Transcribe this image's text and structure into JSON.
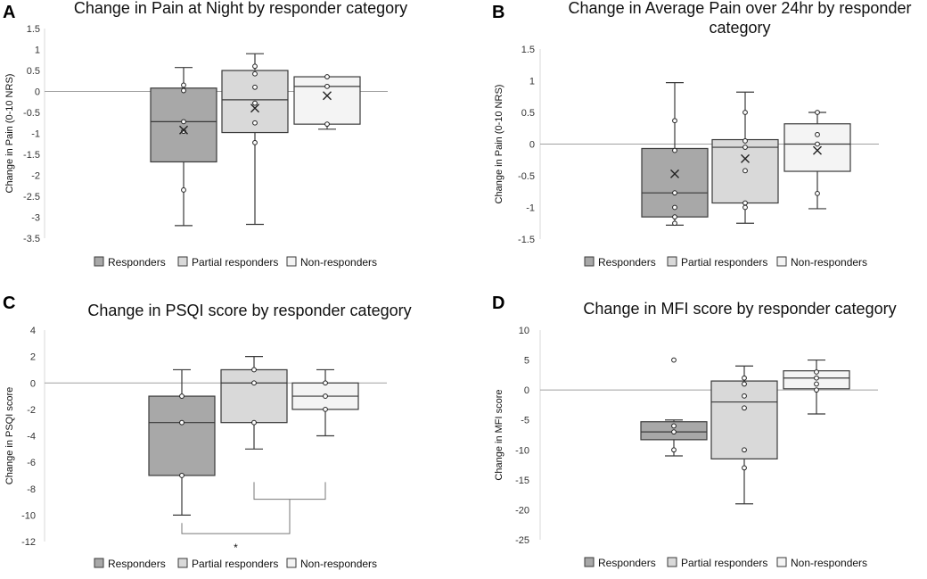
{
  "legend": [
    "Responders",
    "Partial responders",
    "Non-responders"
  ],
  "colors": {
    "responders": "#a8a8a8",
    "partial": "#d9d9d9",
    "non": "#f4f4f4",
    "stroke": "#3a3a3a",
    "zero_line": "#a0a0a0"
  },
  "chart_data": [
    {
      "panel": "A",
      "type": "box",
      "title_lines": [
        "Change in Pain at Night by responder category"
      ],
      "ylabel": "Change in Pain (0-10 NRS)",
      "ylim": [
        -3.5,
        1.5
      ],
      "yticks": [
        1.5,
        1,
        0.5,
        0,
        -0.5,
        -1,
        -1.5,
        -2,
        -2.5,
        -3,
        -3.5
      ],
      "ytick_labels": [
        "1.5",
        "1",
        "0.5",
        "0",
        "-0.5",
        "-1",
        "-1.5",
        "-2",
        "-2.5",
        "-3",
        "-3.5"
      ],
      "series": [
        {
          "name": "Responders",
          "min": -3.2,
          "q1": -1.68,
          "median": -0.72,
          "q3": 0.08,
          "max": 0.57,
          "mean": -0.92,
          "points": [
            0.15,
            0.02,
            -0.72,
            -0.95,
            -2.35
          ]
        },
        {
          "name": "Partial responders",
          "min": -3.17,
          "q1": -0.98,
          "median": -0.2,
          "q3": 0.5,
          "max": 0.9,
          "mean": -0.4,
          "points": [
            0.6,
            0.42,
            0.1,
            -0.28,
            -0.75,
            -1.22
          ]
        },
        {
          "name": "Non-responders",
          "min": -0.9,
          "q1": -0.78,
          "median": 0.12,
          "q3": 0.35,
          "max": 0.35,
          "mean": -0.1,
          "points": [
            0.35,
            0.12,
            -0.78
          ]
        }
      ]
    },
    {
      "panel": "B",
      "type": "box",
      "title_lines": [
        "Change in Average Pain over 24hr by responder",
        "category"
      ],
      "ylabel": "Change in Pain (0-10 NRS)",
      "ylim": [
        -1.5,
        1.5
      ],
      "yticks": [
        1.5,
        1,
        0.5,
        0,
        -0.5,
        -1,
        -1.5
      ],
      "ytick_labels": [
        "1.5",
        "1",
        "0.5",
        "0",
        "-0.5",
        "-1",
        "-1.5"
      ],
      "series": [
        {
          "name": "Responders",
          "min": -1.28,
          "q1": -1.15,
          "median": -0.77,
          "q3": -0.07,
          "max": 0.97,
          "mean": -0.47,
          "points": [
            0.37,
            -0.1,
            -0.77,
            -1.0,
            -1.15,
            -1.25
          ]
        },
        {
          "name": "Partial responders",
          "min": -1.25,
          "q1": -0.93,
          "median": -0.05,
          "q3": 0.07,
          "max": 0.82,
          "mean": -0.23,
          "points": [
            0.5,
            0.05,
            -0.05,
            -0.42,
            -0.93,
            -1.0
          ]
        },
        {
          "name": "Non-responders",
          "min": -1.02,
          "q1": -0.43,
          "median": 0.0,
          "q3": 0.32,
          "max": 0.5,
          "mean": -0.1,
          "points": [
            0.5,
            0.15,
            0.0,
            -0.78
          ]
        }
      ]
    },
    {
      "panel": "C",
      "type": "box",
      "title_lines": [
        "Change in PSQI score by responder category"
      ],
      "ylabel": "Change in PSQI score",
      "ylim": [
        -12,
        4
      ],
      "yticks": [
        4,
        2,
        0,
        -2,
        -4,
        -6,
        -8,
        -10,
        -12
      ],
      "ytick_labels": [
        "4",
        "2",
        "0",
        "-2",
        "-4",
        "-6",
        "-8",
        "-10",
        "-12"
      ],
      "series": [
        {
          "name": "Responders",
          "min": -10,
          "q1": -7,
          "median": -3,
          "q3": -1,
          "max": 1,
          "mean": null,
          "points": [
            -1,
            -3,
            -7
          ]
        },
        {
          "name": "Partial responders",
          "min": -5,
          "q1": -3,
          "median": 0,
          "q3": 1,
          "max": 2,
          "mean": null,
          "points": [
            1,
            0,
            -3
          ]
        },
        {
          "name": "Non-responders",
          "min": -4,
          "q1": -2,
          "median": -1,
          "q3": 0,
          "max": 1,
          "mean": null,
          "points": [
            0,
            -1,
            -2
          ]
        }
      ],
      "significance": "*"
    },
    {
      "panel": "D",
      "type": "box",
      "title_lines": [
        "Change in MFI score by responder category"
      ],
      "ylabel": "Change in MFI score",
      "ylim": [
        -25,
        10
      ],
      "yticks": [
        10,
        5,
        0,
        -5,
        -10,
        -15,
        -20,
        -25
      ],
      "ytick_labels": [
        "10",
        "5",
        "0",
        "-5",
        "-10",
        "-15",
        "-20",
        "-25"
      ],
      "series": [
        {
          "name": "Responders",
          "min": -11,
          "q1": -8.3,
          "median": -7,
          "q3": -5.3,
          "max": -5,
          "mean": null,
          "points": [
            5,
            -6,
            -7,
            -10
          ]
        },
        {
          "name": "Partial responders",
          "min": -19,
          "q1": -11.5,
          "median": -2,
          "q3": 1.5,
          "max": 4,
          "mean": null,
          "points": [
            2,
            1,
            -1,
            -3,
            -10,
            -13
          ]
        },
        {
          "name": "Non-responders",
          "min": -4,
          "q1": 0.2,
          "median": 2,
          "q3": 3.2,
          "max": 5,
          "mean": null,
          "points": [
            3,
            2,
            1,
            0
          ]
        }
      ]
    }
  ]
}
